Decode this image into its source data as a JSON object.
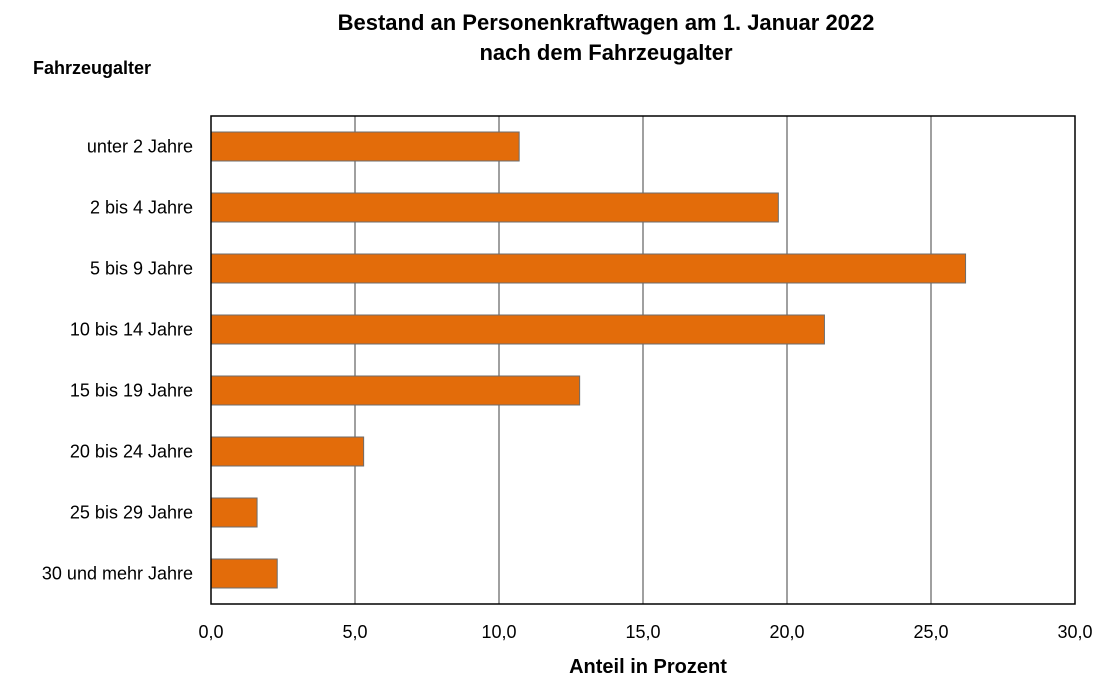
{
  "chart_data": {
    "type": "bar",
    "orientation": "horizontal",
    "title": "Bestand an Personenkraftwagen am 1. Januar 2022",
    "subtitle": "nach dem Fahrzeugalter",
    "ylabel": "Fahrzeugalter",
    "xlabel": "Anteil in Prozent",
    "categories": [
      "unter 2 Jahre",
      "2 bis 4 Jahre",
      "5 bis 9 Jahre",
      "10 bis 14 Jahre",
      "15 bis 19 Jahre",
      "20 bis 24 Jahre",
      "25 bis 29 Jahre",
      "30 und mehr Jahre"
    ],
    "values": [
      10.7,
      19.7,
      26.2,
      21.3,
      12.8,
      5.3,
      1.6,
      2.3
    ],
    "xlim": [
      0,
      30
    ],
    "ticks": [
      "0,0",
      "5,0",
      "10,0",
      "15,0",
      "20,0",
      "25,0",
      "30,0"
    ],
    "grid": true,
    "bar_color": "#E36C0A"
  }
}
